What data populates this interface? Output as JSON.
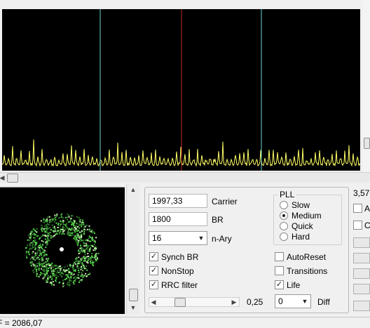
{
  "colors": {
    "spectrum_bg": "#000000",
    "trace": "#ffff66",
    "marker_side": "#6fd3d3",
    "marker_center": "#c0282a",
    "constellation": "#57d64c"
  },
  "status": {
    "freq_readout": "F = 2086,07"
  },
  "controls": {
    "carrier": {
      "value": "1997,33",
      "label": "Carrier"
    },
    "br": {
      "value": "1800",
      "label": "BR"
    },
    "nary": {
      "value": "16",
      "label": "n-Ary"
    },
    "pll": {
      "title": "PLL",
      "options": [
        {
          "label": "Slow",
          "selected": false
        },
        {
          "label": "Medium",
          "selected": true
        },
        {
          "label": "Quick",
          "selected": false
        },
        {
          "label": "Hard",
          "selected": false
        }
      ]
    },
    "checks": [
      {
        "label": "Synch BR",
        "checked": true
      },
      {
        "label": "NonStop",
        "checked": true
      },
      {
        "label": "RRC filter",
        "checked": true
      },
      {
        "label": "AutoReset",
        "checked": false
      },
      {
        "label": "Transitions",
        "checked": false
      },
      {
        "label": "Life",
        "checked": true
      }
    ],
    "slider_value": "0,25",
    "diff": {
      "value": "0",
      "label": "Diff"
    }
  },
  "right_column": {
    "value_label": "3,57",
    "cut_a": "A",
    "cut_c": "C"
  }
}
